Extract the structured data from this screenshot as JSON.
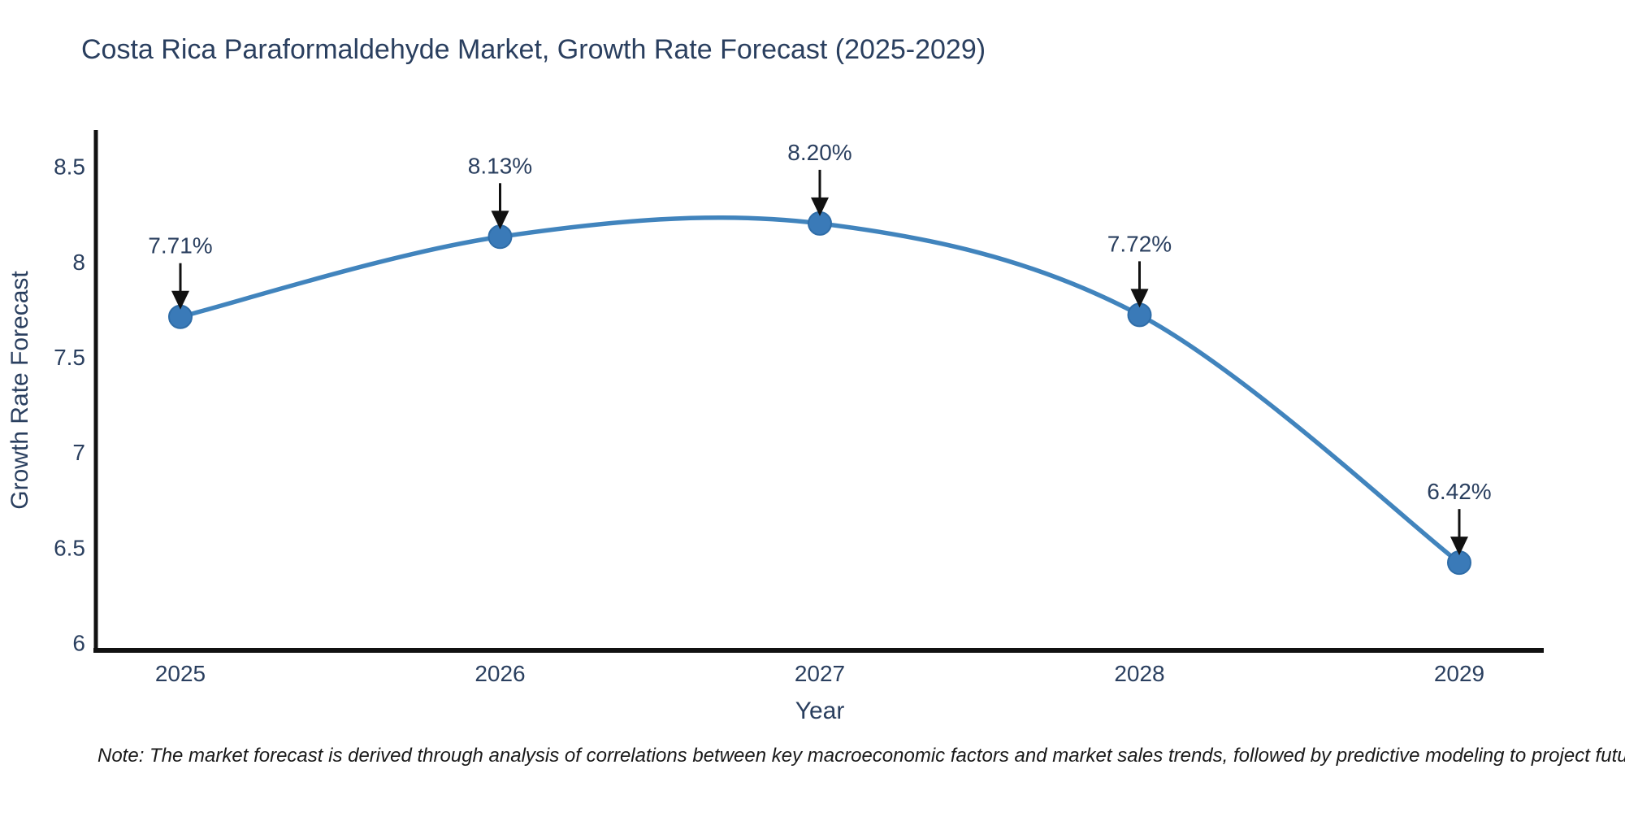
{
  "note": "Note: The market forecast is derived through analysis of correlations between key macroeconomic factors and market sales trends, followed by predictive modeling to project future sales",
  "chart_data": {
    "type": "line",
    "title": "Costa Rica Paraformaldehyde Market, Growth Rate Forecast (2025-2029)",
    "xlabel": "Year",
    "ylabel": "Growth Rate Forecast",
    "categories": [
      "2025",
      "2026",
      "2027",
      "2028",
      "2029"
    ],
    "values": [
      7.71,
      8.13,
      8.2,
      7.72,
      6.42
    ],
    "point_labels": [
      "7.71%",
      "8.13%",
      "8.20%",
      "7.72%",
      "6.42%"
    ],
    "ytick_values": [
      8.5,
      8,
      7.5,
      7,
      6.5,
      6
    ],
    "ytick_labels": [
      "8.5",
      "8",
      "7.5",
      "7",
      "6.5",
      "6"
    ],
    "ylim": [
      5.96,
      8.69
    ],
    "line_shape": "spline",
    "grid": false,
    "legend": "none",
    "colors": {
      "line": "#4184bd",
      "marker": "#3a7ab8",
      "marker_edge": "#2f6da8",
      "axis": "#111111",
      "text": "#2a3f5f",
      "arrow": "#111111"
    }
  }
}
